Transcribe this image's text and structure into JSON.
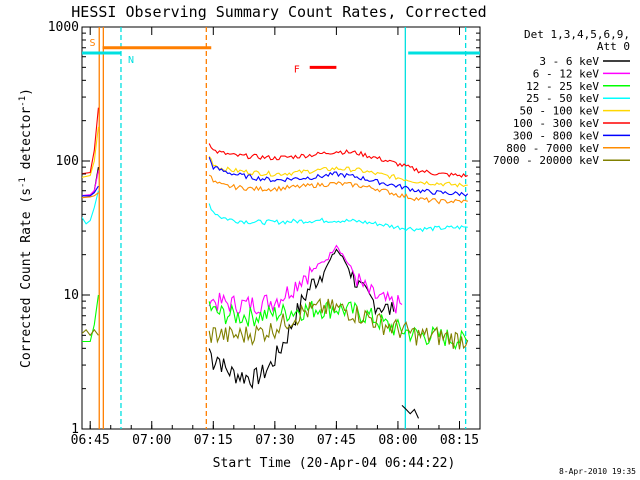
{
  "chart_data": {
    "type": "line",
    "title": "HESSI Observing Summary Count Rates, Corrected",
    "xlabel": "Start Time (20-Apr-04 06:44:22)",
    "ylabel": "Corrected Count Rate (s⁻¹ detector⁻¹)",
    "ylabel_main": "Corrected Count Rate (s",
    "ylabel_exp1": "-1",
    "ylabel_mid": " detector",
    "ylabel_exp2": "-1",
    "ylabel_end": ")",
    "yscale": "log",
    "ylim": [
      1,
      1000
    ],
    "xlim_minutes": [
      -2,
      95
    ],
    "x_ticks": [
      {
        "label": "06:45",
        "min": 0
      },
      {
        "label": "07:00",
        "min": 15
      },
      {
        "label": "07:15",
        "min": 30
      },
      {
        "label": "07:30",
        "min": 45
      },
      {
        "label": "07:45",
        "min": 60
      },
      {
        "label": "08:00",
        "min": 75
      },
      {
        "label": "08:15",
        "min": 90
      }
    ],
    "y_ticks": [
      {
        "label": "1",
        "value": 1
      },
      {
        "label": "10",
        "value": 10
      },
      {
        "label": "100",
        "value": 100
      },
      {
        "label": "1000",
        "value": 1000
      }
    ],
    "legend_header_1": "Det 1,3,4,5,6,9,",
    "legend_header_2": "Att 0",
    "timestamp": "8-Apr-2010 19:35",
    "series": [
      {
        "name": "3 - 6 keV",
        "color": "#000000",
        "segments": [
          {
            "t": [
              -2.5,
              0,
              1,
              2
            ],
            "v": [
              55,
              55,
              60,
              90
            ]
          },
          {
            "t": [
              29,
              30,
              31,
              33,
              35,
              37,
              40,
              42,
              44,
              46,
              48,
              50,
              52,
              54,
              56,
              58,
              60,
              62,
              64,
              66,
              68,
              70,
              72,
              74
            ],
            "v": [
              4,
              3.2,
              3.5,
              2.8,
              2.6,
              2.5,
              2.4,
              2.6,
              3.0,
              3.8,
              5.0,
              7.0,
              9.5,
              12,
              14,
              17,
              22,
              18,
              14,
              11,
              9.5,
              8.5,
              8.0,
              7.5
            ]
          },
          {
            "t": [
              76,
              77,
              78,
              79,
              80
            ],
            "v": [
              1.5,
              1.4,
              1.3,
              1.4,
              1.2
            ]
          }
        ]
      },
      {
        "name": "6 - 12 keV",
        "color": "#ff00ff",
        "segments": [
          {
            "t": [
              -2.5,
              0,
              1,
              2
            ],
            "v": [
              55,
              56,
              60,
              85
            ]
          },
          {
            "t": [
              29,
              30,
              32,
              35,
              38,
              40,
              42,
              44,
              46,
              48,
              50,
              52,
              54,
              56,
              58,
              60,
              62,
              64,
              66,
              68,
              70,
              72,
              74,
              76
            ],
            "v": [
              10,
              9.0,
              8.8,
              8.6,
              8.5,
              8.6,
              8.8,
              9.0,
              9.5,
              10.5,
              12,
              14,
              15,
              17,
              19,
              24,
              19,
              15,
              12,
              10.5,
              9.5,
              9.0,
              8.6,
              8.5
            ]
          }
        ]
      },
      {
        "name": "12 - 25 keV",
        "color": "#00ff00",
        "segments": [
          {
            "t": [
              -2.5,
              0,
              1,
              2
            ],
            "v": [
              4.5,
              4.5,
              6,
              10
            ]
          },
          {
            "t": [
              29,
              30,
              33,
              36,
              40,
              44,
              48,
              52,
              56,
              60,
              64,
              68,
              72,
              76,
              80,
              84,
              88,
              92
            ],
            "v": [
              8.5,
              7.5,
              7.2,
              7.0,
              7.0,
              7.2,
              7.5,
              7.8,
              8.0,
              8.0,
              7.6,
              7.0,
              6.0,
              5.5,
              5.0,
              5.0,
              4.8,
              4.5
            ]
          }
        ]
      },
      {
        "name": "25 - 50 keV",
        "color": "#00ffff",
        "segments": [
          {
            "t": [
              -2.5,
              -1,
              0,
              1,
              2
            ],
            "v": [
              40,
              34,
              36,
              45,
              60
            ]
          },
          {
            "t": [
              29,
              30,
              32,
              35,
              40,
              45,
              50,
              55,
              60,
              65,
              70,
              75,
              80,
              85,
              90,
              92
            ],
            "v": [
              48,
              42,
              38,
              36,
              35,
              35,
              35.5,
              36,
              36,
              35.5,
              34,
              32,
              31,
              31.5,
              32,
              32
            ]
          }
        ]
      },
      {
        "name": "50 - 100 keV",
        "color": "#ffd700",
        "segments": [
          {
            "t": [
              -2.5,
              0,
              1,
              2
            ],
            "v": [
              75,
              78,
              100,
              180
            ]
          },
          {
            "t": [
              29,
              30,
              32,
              35,
              40,
              45,
              50,
              55,
              60,
              65,
              70,
              75,
              80,
              85,
              90,
              92
            ],
            "v": [
              110,
              95,
              88,
              85,
              82,
              80,
              82,
              85,
              88,
              86,
              80,
              75,
              70,
              68,
              66,
              66
            ]
          }
        ]
      },
      {
        "name": "100 - 300 keV",
        "color": "#ff0000",
        "segments": [
          {
            "t": [
              -2.5,
              0,
              1,
              2
            ],
            "v": [
              80,
              82,
              120,
              250
            ]
          },
          {
            "t": [
              29,
              30,
              32,
              35,
              40,
              45,
              50,
              55,
              60,
              65,
              70,
              75,
              80,
              85,
              90,
              92
            ],
            "v": [
              140,
              120,
              115,
              110,
              108,
              105,
              108,
              112,
              118,
              115,
              105,
              95,
              85,
              80,
              78,
              78
            ]
          }
        ]
      },
      {
        "name": "300 - 800 keV",
        "color": "#0000ff",
        "segments": [
          {
            "t": [
              -2.5,
              0,
              1,
              2
            ],
            "v": [
              55,
              55,
              58,
              65
            ]
          },
          {
            "t": [
              29,
              30,
              32,
              35,
              40,
              45,
              50,
              55,
              60,
              65,
              70,
              75,
              80,
              85,
              90,
              92
            ],
            "v": [
              105,
              90,
              85,
              80,
              75,
              72,
              74,
              76,
              80,
              76,
              70,
              65,
              60,
              58,
              57,
              57
            ]
          }
        ]
      },
      {
        "name": "800 - 7000 keV",
        "color": "#ff8c00",
        "segments": [
          {
            "t": [
              -2.5,
              0,
              1,
              2
            ],
            "v": [
              53,
              54,
              55,
              58
            ]
          },
          {
            "t": [
              29,
              30,
              32,
              35,
              40,
              45,
              50,
              55,
              60,
              65,
              70,
              75,
              80,
              85,
              90,
              92
            ],
            "v": [
              80,
              70,
              66,
              64,
              62,
              62,
              64,
              66,
              68,
              66,
              62,
              56,
              52,
              50,
              50,
              50
            ]
          }
        ]
      },
      {
        "name": "7000 - 20000 keV",
        "color": "#808000",
        "segments": [
          {
            "t": [
              -2.5,
              -1,
              0,
              1,
              2
            ],
            "v": [
              5.0,
              5.5,
              5.0,
              5.5,
              5.0
            ]
          },
          {
            "t": [
              29,
              30,
              33,
              36,
              40,
              44,
              48,
              52,
              56,
              60,
              64,
              68,
              72,
              76,
              80,
              84,
              88,
              92
            ],
            "v": [
              5.0,
              5.2,
              5.0,
              5.0,
              5.2,
              5.5,
              6.5,
              7.5,
              8.0,
              8.0,
              7.5,
              6.8,
              6.0,
              5.5,
              5.0,
              5.0,
              4.8,
              4.6
            ]
          }
        ]
      }
    ],
    "flags": [
      {
        "label": "S",
        "color": "#ff7f00",
        "start": 3.0,
        "end": 29.5,
        "value": 700
      },
      {
        "label": "N",
        "color": "#00e0e0",
        "start": -2.5,
        "end": 7.5,
        "value": 640
      },
      {
        "label": "N",
        "color": "#00e0e0",
        "start": 77.5,
        "end": 95,
        "value": 640
      },
      {
        "label": "F",
        "color": "#ff0000",
        "start": 53.5,
        "end": 60.0,
        "value": 500
      }
    ],
    "vertical_markers": [
      {
        "min": 2.2,
        "color": "#ff7f00",
        "style": "solid"
      },
      {
        "min": 3.2,
        "color": "#ff7f00",
        "style": "solid"
      },
      {
        "min": 7.5,
        "color": "#00e0e0",
        "style": "dashed"
      },
      {
        "min": 28.3,
        "color": "#ff7f00",
        "style": "dashed"
      },
      {
        "min": 76.8,
        "color": "#00e0e0",
        "style": "solid"
      },
      {
        "min": 91.5,
        "color": "#00e0e0",
        "style": "dashed"
      }
    ]
  }
}
